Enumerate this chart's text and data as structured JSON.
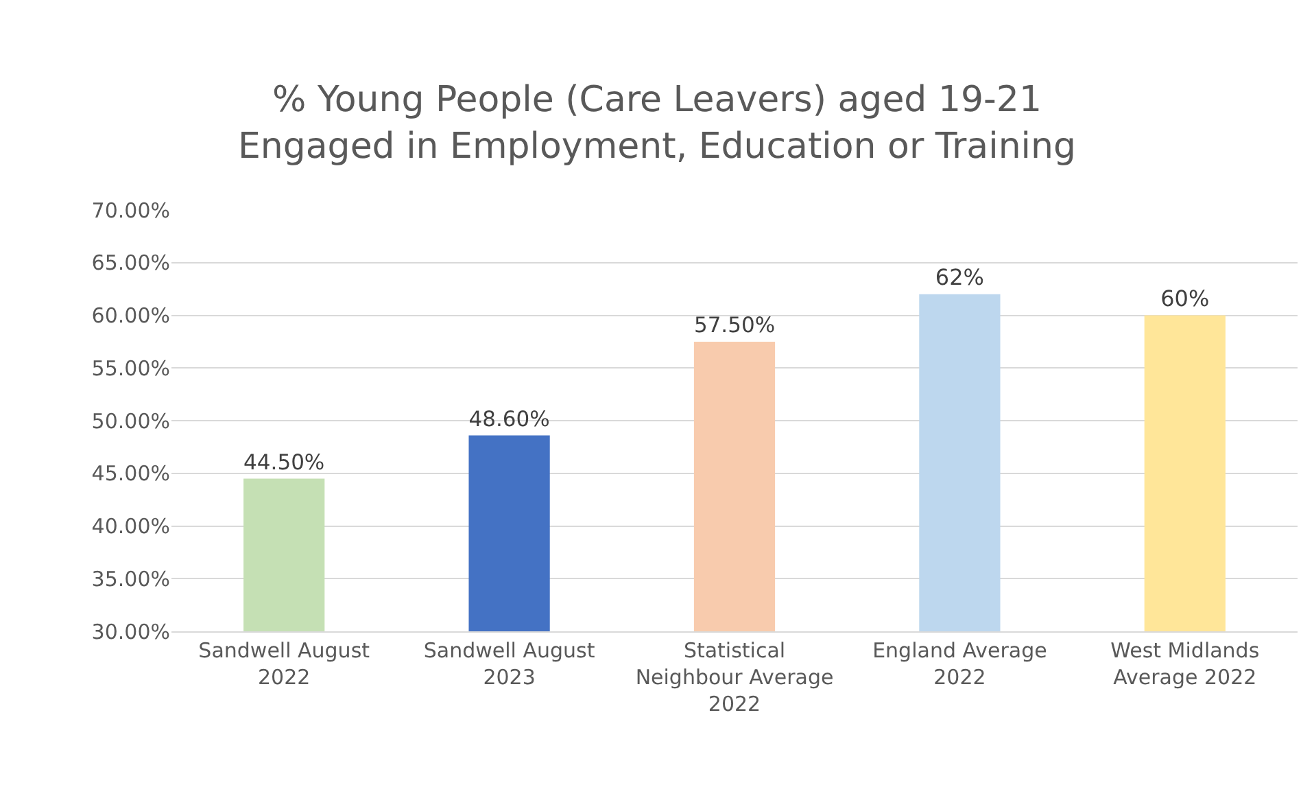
{
  "chart_data": {
    "type": "bar",
    "title": "% Young People (Care Leavers) aged 19-21\nEngaged in Employment, Education or Training",
    "categories": [
      "Sandwell August 2022",
      "Sandwell August 2023",
      "Statistical Neighbour Average 2022",
      "England Average 2022",
      "West Midlands Average 2022"
    ],
    "values": [
      44.5,
      48.6,
      57.5,
      62,
      60
    ],
    "colors": [
      "#c5e0b4",
      "#4472c4",
      "#f8cbad",
      "#bdd7ee",
      "#ffe699"
    ],
    "value_labels": [
      "44.50%",
      "48.60%",
      "57.50%",
      "62%",
      "60%"
    ],
    "ylim": [
      30,
      70
    ],
    "yticks": [
      {
        "value": 30,
        "label": "30.00%"
      },
      {
        "value": 35,
        "label": "35.00%"
      },
      {
        "value": 40,
        "label": "40.00%"
      },
      {
        "value": 45,
        "label": "45.00%"
      },
      {
        "value": 50,
        "label": "50.00%"
      },
      {
        "value": 55,
        "label": "55.00%"
      },
      {
        "value": 60,
        "label": "60.00%"
      },
      {
        "value": 65,
        "label": "65.00%"
      },
      {
        "value": 70,
        "label": "70.00%"
      }
    ],
    "grid": "y"
  }
}
